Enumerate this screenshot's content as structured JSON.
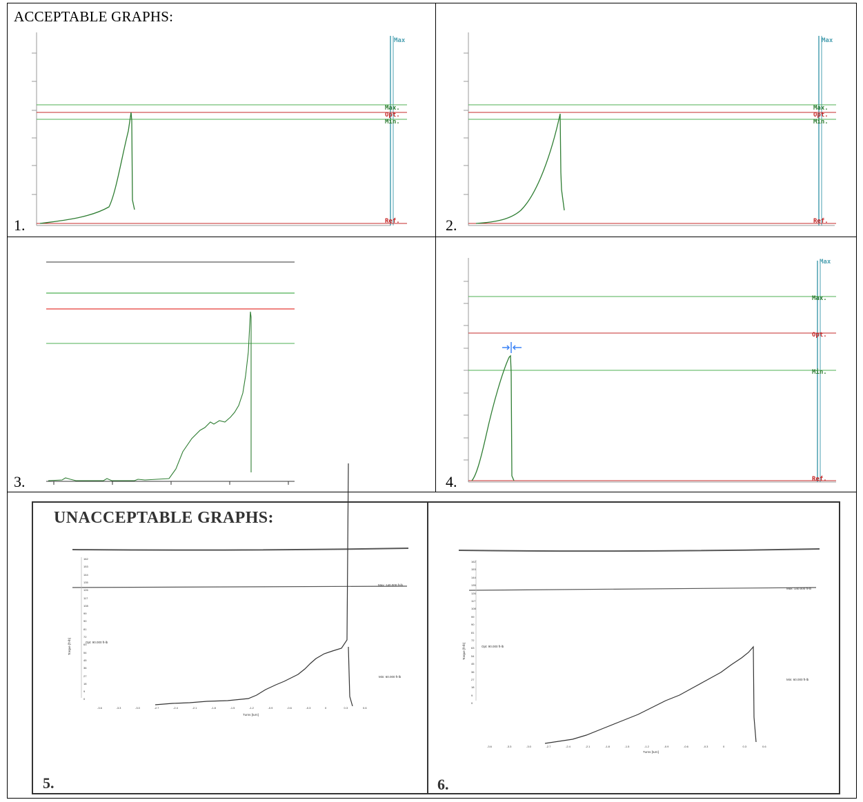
{
  "heading_acceptable": "ACCEPTABLE GRAPHS:",
  "heading_unacceptable": "UNACCEPTABLE GRAPHS:",
  "graphs": [
    {
      "number": "1.",
      "labels": {
        "top": "Max",
        "max": "Max.",
        "opt": "Opt.",
        "min": "Min.",
        "ref": "Ref."
      }
    },
    {
      "number": "2.",
      "labels": {
        "top": "Max",
        "max": "Max.",
        "opt": "Opt.",
        "min": "Min.",
        "ref": "Ref."
      }
    },
    {
      "number": "3."
    },
    {
      "number": "4.",
      "labels": {
        "top": "Max",
        "max": "Max.",
        "opt": "Opt.",
        "min": "Min.",
        "ref": "Ref."
      }
    },
    {
      "number": "5.",
      "max_label": "Max: 140.000 ft-lb",
      "opt_label": "Opt: 90.000 ft-lb",
      "min_label": "Min: 60.000 ft-lb",
      "y_axis_label": "Torque [ft-lb]",
      "x_axis_label": "Turns [turn]",
      "y_ticks": [
        "162",
        "153",
        "144",
        "135",
        "126",
        "117",
        "108",
        "99",
        "90",
        "81",
        "72",
        "63",
        "54",
        "45",
        "36",
        "27",
        "18",
        "9",
        "0"
      ],
      "x_ticks": [
        "-3.6",
        "-3.3",
        "-3.0",
        "-2.7",
        "-2.4",
        "-2.1",
        "-1.8",
        "-1.5",
        "-1.2",
        "-0.9",
        "-0.6",
        "-0.3",
        "0",
        "0.3",
        "0.6"
      ]
    },
    {
      "number": "6.",
      "max_label": "Max: 140.000 ft-lb",
      "opt_label": "Opt: 90.000 ft-lb",
      "min_label": "Min: 60.000 ft-lb",
      "y_axis_label": "Torque [ft-lb]",
      "x_axis_label": "Turns [turn]",
      "y_ticks": [
        "162",
        "153",
        "144",
        "135",
        "126",
        "117",
        "108",
        "99",
        "90",
        "81",
        "72",
        "63",
        "54",
        "45",
        "36",
        "27",
        "18",
        "9",
        "0"
      ],
      "x_ticks": [
        "-3.6",
        "-3.3",
        "-3.0",
        "-2.7",
        "-2.4",
        "-2.1",
        "-1.8",
        "-1.5",
        "-1.2",
        "-0.9",
        "-0.6",
        "-0.3",
        "0",
        "0.3",
        "0.6"
      ]
    }
  ],
  "colors": {
    "limit_green": "#4caf50",
    "opt_red": "#c62828",
    "curve_green": "#2e7d32",
    "frame_teal": "#4a9fb0",
    "scan_gray": "#333333",
    "marker_blue": "#3b82f6"
  }
}
